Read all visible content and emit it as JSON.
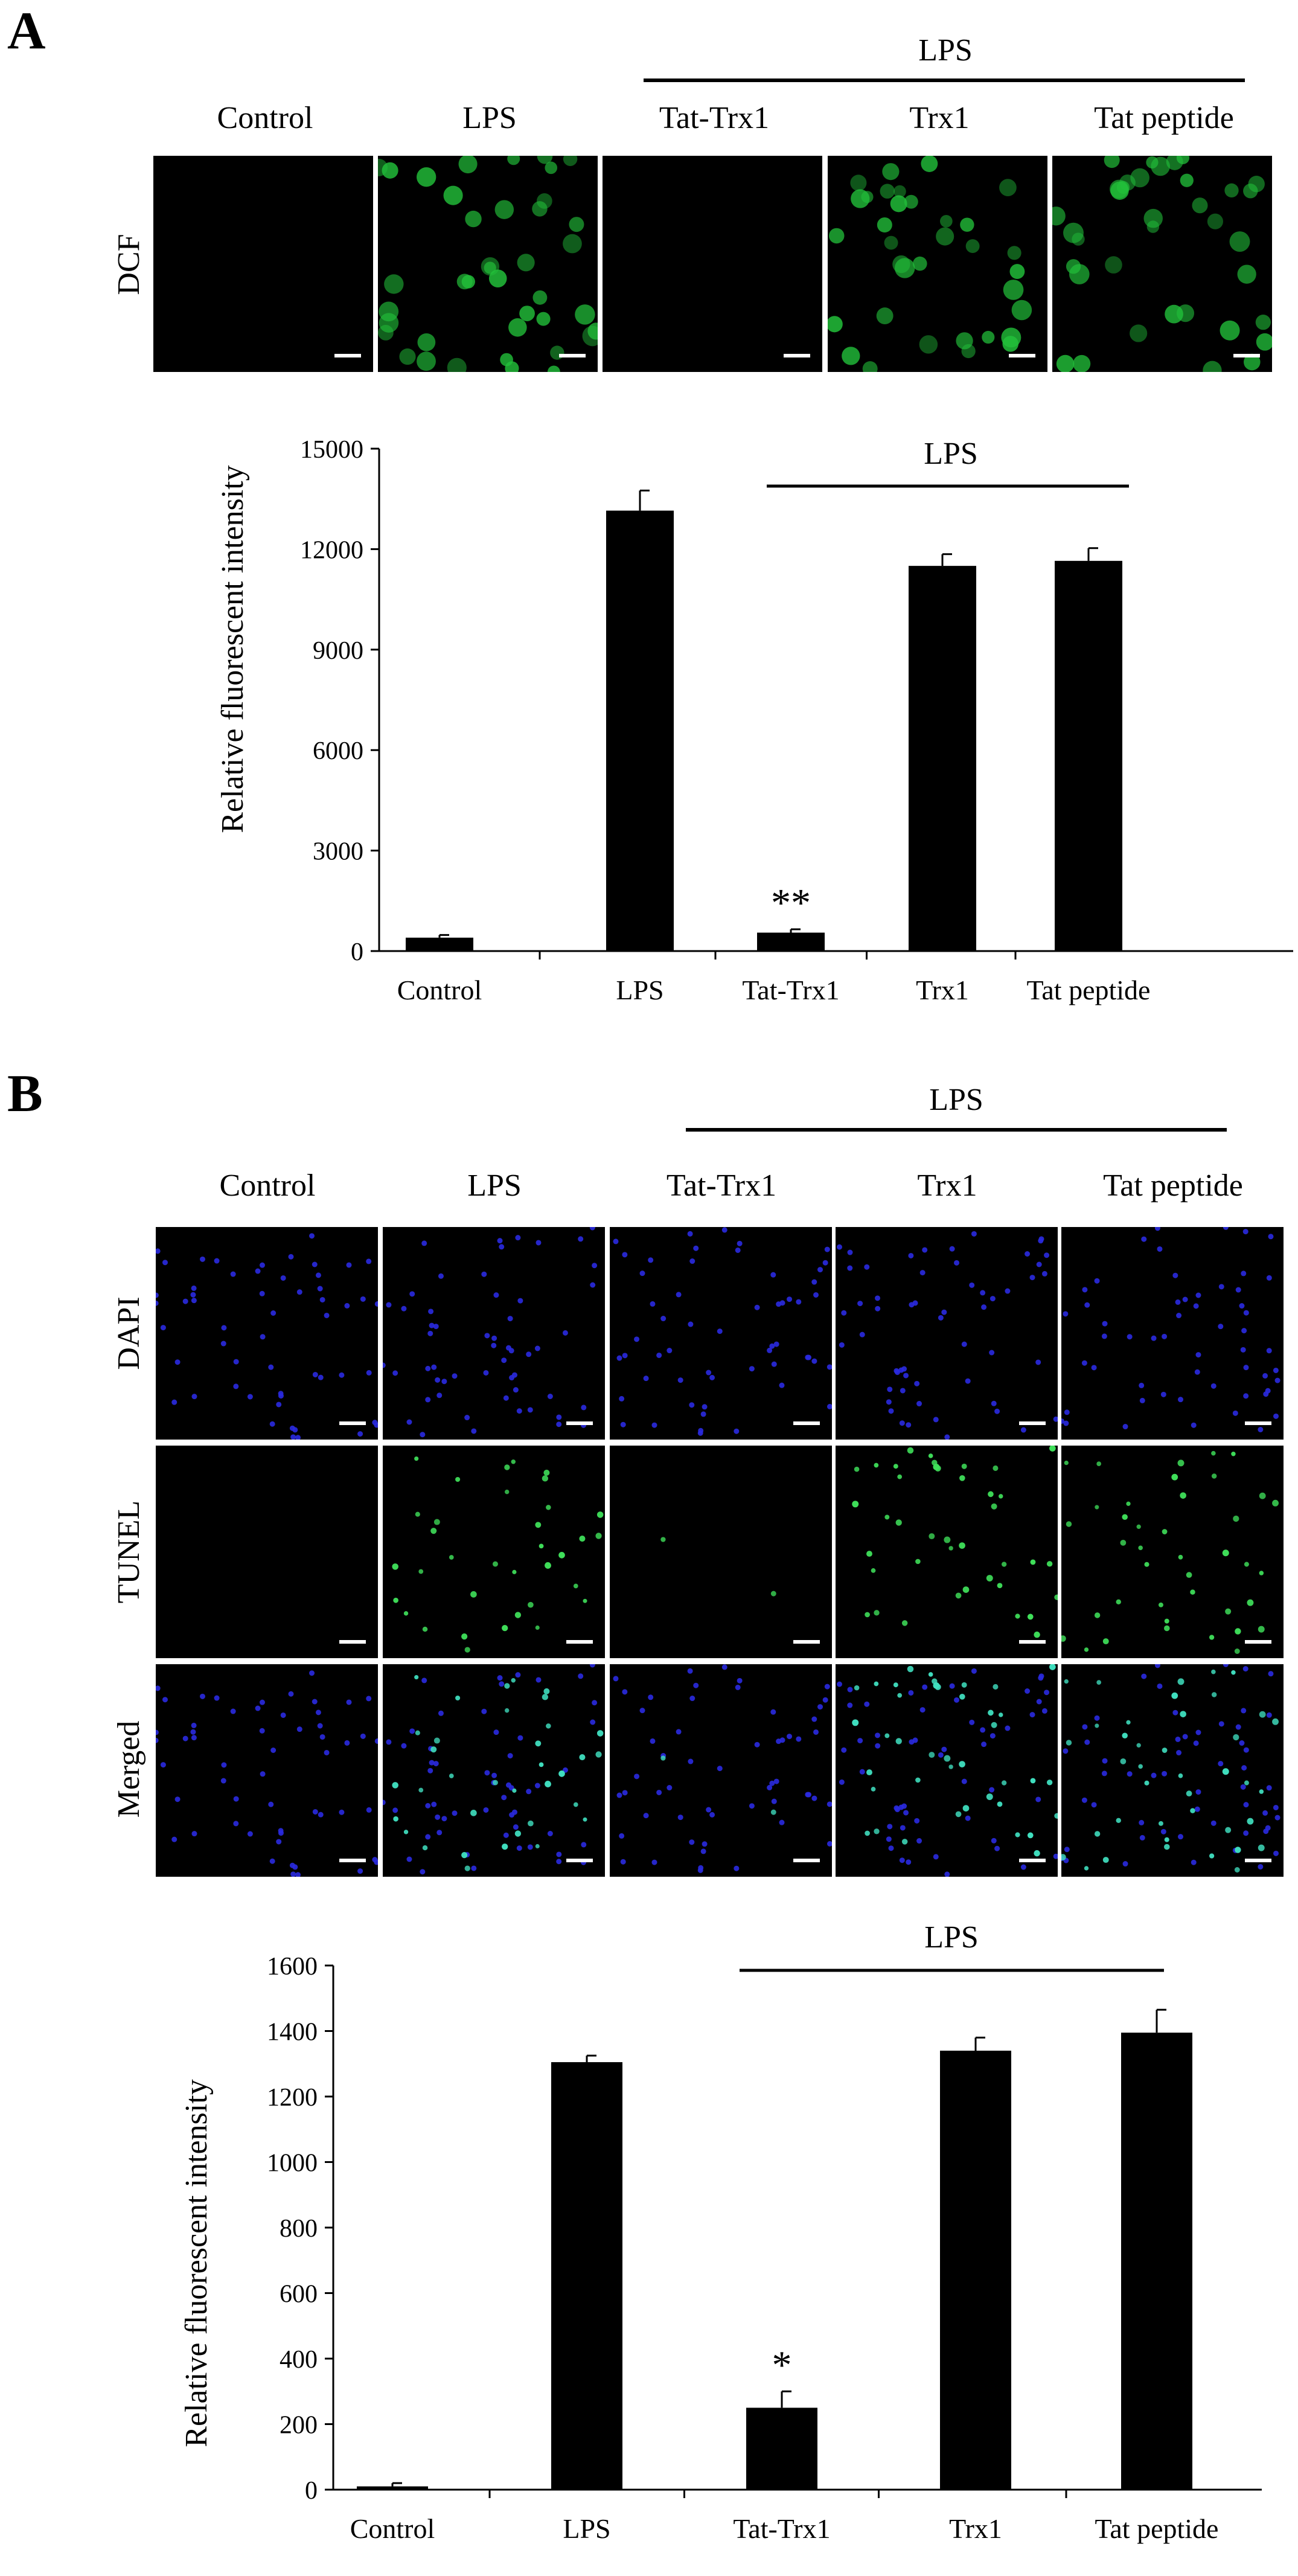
{
  "panels": [
    {
      "letter": "A",
      "treatment_label": "LPS",
      "columns": [
        "Control",
        "LPS",
        "Tat-Trx1",
        "Trx1",
        "Tat peptide"
      ],
      "rows": [
        {
          "label": "DCF",
          "channel": "green"
        }
      ],
      "signal_level": [
        0,
        1,
        0,
        0.85,
        0.9
      ]
    },
    {
      "letter": "B",
      "treatment_label": "LPS",
      "columns": [
        "Control",
        "LPS",
        "Tat-Trx1",
        "Trx1",
        "Tat peptide"
      ],
      "rows": [
        {
          "label": "DAPI",
          "channel": "blue"
        },
        {
          "label": "TUNEL",
          "channel": "green"
        },
        {
          "label": "Merged",
          "channel": "merged"
        }
      ],
      "signal_level": [
        0,
        0.9,
        0.05,
        1,
        1
      ]
    }
  ],
  "colors": {
    "bar": "#000000",
    "dcf_green": "#22c03a",
    "dapi_blue": "#2a2ae0",
    "tunel_green": "#3fe05a",
    "merged_cyan": "#40e0c0"
  },
  "chart_data": [
    {
      "type": "bar",
      "panel": "A",
      "categories": [
        "Control",
        "LPS",
        "Tat-Trx1",
        "Trx1",
        "Tat peptide"
      ],
      "values": [
        400,
        13150,
        550,
        11500,
        11650
      ],
      "errors": [
        80,
        600,
        100,
        350,
        380
      ],
      "annotations": [
        "",
        "",
        "**",
        "",
        ""
      ],
      "ylabel": "Relative fluorescent intensity",
      "ylim": [
        0,
        15000
      ],
      "yticks": [
        0,
        3000,
        6000,
        9000,
        12000,
        15000
      ],
      "ytick_labels": [
        "0",
        "3000",
        "6000",
        "9000",
        "12000",
        "15000"
      ],
      "group_label": "LPS",
      "grid": false
    },
    {
      "type": "bar",
      "panel": "B",
      "categories": [
        "Control",
        "LPS",
        "Tat-Trx1",
        "Trx1",
        "Tat peptide"
      ],
      "values": [
        10,
        1305,
        250,
        1340,
        1395
      ],
      "errors": [
        10,
        20,
        50,
        40,
        70
      ],
      "annotations": [
        "",
        "",
        "*",
        "",
        ""
      ],
      "ylabel": "Relative fluorescent intensity",
      "ylim": [
        0,
        1600
      ],
      "yticks": [
        0,
        200,
        400,
        600,
        800,
        1000,
        1200,
        1400,
        1600
      ],
      "ytick_labels": [
        "0",
        "200",
        "400",
        "600",
        "800",
        "1000",
        "1200",
        "1400",
        "1600"
      ],
      "group_label": "LPS",
      "grid": false
    }
  ]
}
